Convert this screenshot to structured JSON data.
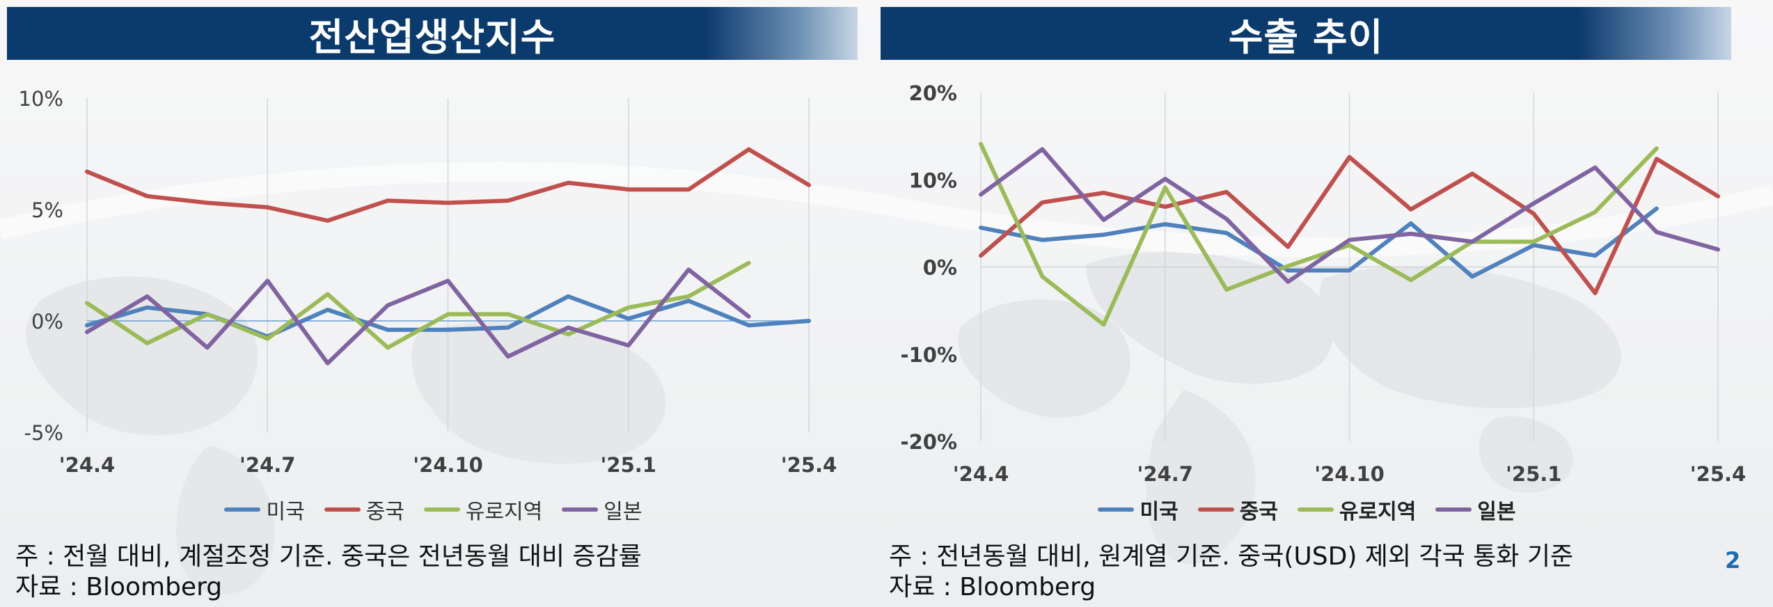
{
  "page_number": "2",
  "colors": {
    "us": "#4f81bd",
    "china": "#c0504d",
    "euro": "#9bbb59",
    "japan": "#8064a2",
    "title_bg": "#0b3a6d",
    "page_number": "#1a6bb0"
  },
  "left_panel": {
    "title": "전산업생산지수",
    "note_line1": "주 : 전월 대비, 계절조정 기준. 중국은 전년동월 대비 증감률",
    "note_line2": "자료 : Bloomberg"
  },
  "right_panel": {
    "title": "수출 추이",
    "note_line1": "주 : 전년동월 대비, 원계열 기준. 중국(USD) 제외 각국 통화 기준",
    "note_line2": "자료 : Bloomberg"
  },
  "chart_data": [
    {
      "type": "line",
      "title": "전산업생산지수",
      "x": [
        "2024-04",
        "2024-05",
        "2024-06",
        "2024-07",
        "2024-08",
        "2024-09",
        "2024-10",
        "2024-11",
        "2024-12",
        "2025-01",
        "2025-02",
        "2025-03",
        "2025-04"
      ],
      "xtick_labels": [
        "'24.4",
        "'24.7",
        "'24.10",
        "'25.1",
        "'25.4"
      ],
      "ytick_labels": [
        "10%",
        "5%",
        "0%",
        "-5%"
      ],
      "ylim": [
        -5,
        10
      ],
      "unit": "%",
      "zero_line": true,
      "grid": "vertical",
      "legend_position": "bottom",
      "series": [
        {
          "name": "미국",
          "key": "us",
          "values": [
            -0.2,
            0.6,
            0.3,
            -0.7,
            0.5,
            -0.4,
            -0.4,
            -0.3,
            1.1,
            0.1,
            0.9,
            -0.2,
            0.0
          ]
        },
        {
          "name": "중국",
          "key": "china",
          "values": [
            6.7,
            5.6,
            5.3,
            5.1,
            4.5,
            5.4,
            5.3,
            5.4,
            6.2,
            5.9,
            5.9,
            7.7,
            6.1
          ]
        },
        {
          "name": "유로지역",
          "key": "euro",
          "values": [
            0.8,
            -1.0,
            0.3,
            -0.8,
            1.2,
            -1.2,
            0.3,
            0.3,
            -0.6,
            0.6,
            1.1,
            2.6,
            null
          ]
        },
        {
          "name": "일본",
          "key": "japan",
          "values": [
            -0.5,
            1.1,
            -1.2,
            1.8,
            -1.9,
            0.7,
            1.8,
            -1.6,
            -0.3,
            -1.1,
            2.3,
            0.2,
            null
          ]
        }
      ]
    },
    {
      "type": "line",
      "title": "수출 추이",
      "x": [
        "2024-04",
        "2024-05",
        "2024-06",
        "2024-07",
        "2024-08",
        "2024-09",
        "2024-10",
        "2024-11",
        "2024-12",
        "2025-01",
        "2025-02",
        "2025-03",
        "2025-04"
      ],
      "xtick_labels": [
        "'24.4",
        "'24.7",
        "'24.10",
        "'25.1",
        "'25.4"
      ],
      "ytick_labels": [
        "20%",
        "10%",
        "0%",
        "-10%",
        "-20%"
      ],
      "ylim": [
        -20,
        20
      ],
      "unit": "%",
      "zero_line": true,
      "grid": "vertical",
      "legend_position": "bottom",
      "series": [
        {
          "name": "미국",
          "key": "us",
          "values": [
            4.5,
            3.1,
            3.7,
            4.9,
            3.9,
            -0.4,
            -0.4,
            5.0,
            -1.1,
            2.5,
            1.3,
            6.7,
            null
          ]
        },
        {
          "name": "중국",
          "key": "china",
          "values": [
            1.3,
            7.4,
            8.5,
            6.9,
            8.6,
            2.3,
            12.6,
            6.6,
            10.7,
            6.1,
            -3.0,
            12.4,
            8.1
          ]
        },
        {
          "name": "유로지역",
          "key": "euro",
          "values": [
            14.1,
            -1.1,
            -6.6,
            9.1,
            -2.6,
            0.1,
            2.5,
            -1.5,
            2.9,
            2.9,
            6.3,
            13.6,
            null
          ]
        },
        {
          "name": "일본",
          "key": "japan",
          "values": [
            8.3,
            13.5,
            5.4,
            10.1,
            5.5,
            -1.7,
            3.1,
            3.8,
            2.9,
            7.3,
            11.4,
            4.0,
            2.0
          ]
        }
      ]
    }
  ]
}
